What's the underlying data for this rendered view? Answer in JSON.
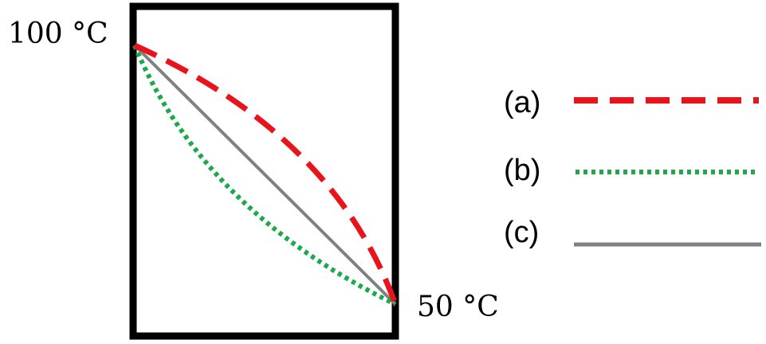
{
  "diagram": {
    "labels": {
      "hot_temp": "100 °C",
      "cold_temp": "50 °C"
    },
    "legend": [
      {
        "label": "(a)",
        "color": "#e8141c",
        "style": "dashed"
      },
      {
        "label": "(b)",
        "color": "#1aaa4a",
        "style": "dotted"
      },
      {
        "label": "(c)",
        "color": "#808080",
        "style": "solid"
      }
    ],
    "colors": {
      "frame": "#000000",
      "curve_a": "#e8141c",
      "curve_b": "#1aaa4a",
      "line_c": "#808080"
    }
  }
}
